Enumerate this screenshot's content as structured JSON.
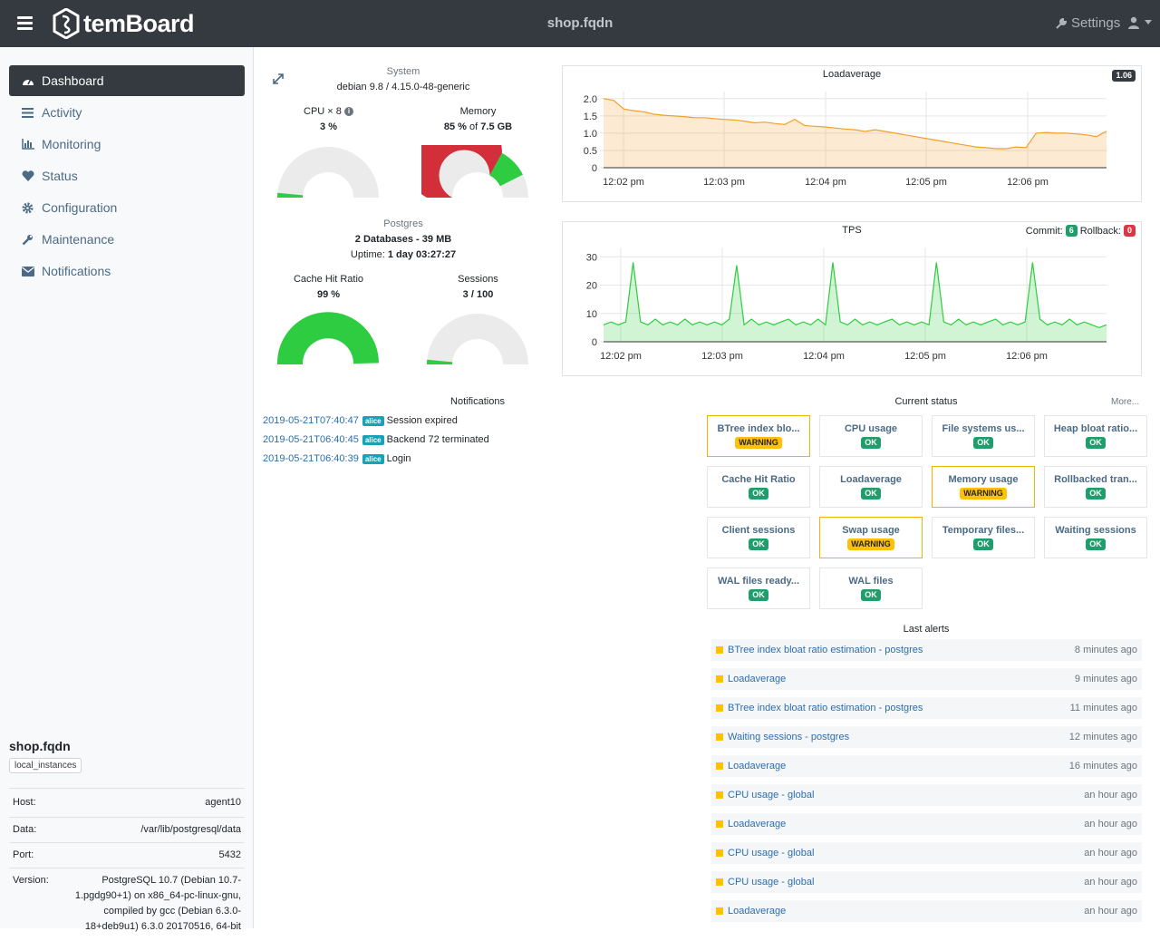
{
  "header": {
    "app_name": "temBoard",
    "host": "shop.fqdn",
    "settings_label": "Settings"
  },
  "sidebar": {
    "items": [
      {
        "label": "Dashboard",
        "icon": "dashboard-icon"
      },
      {
        "label": "Activity",
        "icon": "list-icon"
      },
      {
        "label": "Monitoring",
        "icon": "bar-chart-icon"
      },
      {
        "label": "Status",
        "icon": "heart-icon"
      },
      {
        "label": "Configuration",
        "icon": "gear-icon"
      },
      {
        "label": "Maintenance",
        "icon": "wrench-icon"
      },
      {
        "label": "Notifications",
        "icon": "envelope-icon"
      }
    ],
    "instance": {
      "name": "shop.fqdn",
      "group": "local_instances",
      "host_label": "Host:",
      "host": "agent10",
      "data_label": "Data:",
      "data": "/var/lib/postgresql/data",
      "port_label": "Port:",
      "port": "5432",
      "version_label": "Version:",
      "version_lines": [
        "PostgreSQL 10.7 (Debian 10.7-",
        "1.pgdg90+1) on x86_64-pc-linux-gnu,",
        "compiled by gcc (Debian 6.3.0-",
        "18+deb9u1) 6.3.0 20170516, 64-bit"
      ]
    }
  },
  "system": {
    "title": "System",
    "os": "debian 9.8 / 4.15.0-48-generic",
    "cpu_label": "CPU × 8",
    "cpu_value": "3 %",
    "cpu_fraction": 0.03,
    "memory_label": "Memory",
    "memory_pct": "85 %",
    "memory_of": "of",
    "memory_total": "7.5 GB",
    "memory_used_fraction": 0.66,
    "memory_cache_fraction": 0.19
  },
  "postgres": {
    "title": "Postgres",
    "databases": "2 Databases - 39 MB",
    "uptime_label": "Uptime:",
    "uptime": "1 day 03:27:27",
    "cache_label": "Cache Hit Ratio",
    "cache_value": "99 %",
    "cache_fraction": 0.99,
    "sessions_label": "Sessions",
    "sessions_value": "3 / 100",
    "sessions_fraction": 0.03
  },
  "charts": {
    "loadavg_badge": "1.06",
    "commit_label": "Commit:",
    "commit_value": "6",
    "rollback_label": "Rollback:",
    "rollback_value": "0"
  },
  "chart_data": [
    {
      "type": "area",
      "title": "Loadaverage",
      "x_ticks": [
        "12:02 pm",
        "12:03 pm",
        "12:04 pm",
        "12:05 pm",
        "12:06 pm"
      ],
      "y_ticks": [
        "0",
        "0.5",
        "1.0",
        "1.5",
        "2.0"
      ],
      "ylim": [
        0,
        2.1
      ],
      "color": "#f0a030",
      "values": [
        2.0,
        1.95,
        1.7,
        1.65,
        1.62,
        1.55,
        1.52,
        1.5,
        1.48,
        1.45,
        1.45,
        1.42,
        1.4,
        1.38,
        1.35,
        1.3,
        1.32,
        1.28,
        1.25,
        1.4,
        1.22,
        1.2,
        1.18,
        1.15,
        1.12,
        1.1,
        1.05,
        1.1,
        1.05,
        1.0,
        0.95,
        0.9,
        0.85,
        0.8,
        0.75,
        0.7,
        0.65,
        0.6,
        0.58,
        0.55,
        0.55,
        0.6,
        0.58,
        1.0,
        1.02,
        1.0,
        1.0,
        0.98,
        0.95,
        0.9,
        1.06
      ]
    },
    {
      "type": "area",
      "title": "TPS",
      "x_ticks": [
        "12:02 pm",
        "12:03 pm",
        "12:04 pm",
        "12:05 pm",
        "12:06 pm"
      ],
      "y_ticks": [
        "0",
        "10",
        "20",
        "30"
      ],
      "ylim": [
        0,
        32
      ],
      "color": "#2ecc40",
      "values": [
        6,
        7,
        6,
        7,
        28,
        7,
        6,
        8,
        6,
        7,
        6,
        8,
        6,
        7,
        6,
        7,
        6,
        8,
        27,
        6,
        8,
        6,
        7,
        6,
        7,
        8,
        6,
        7,
        6,
        8,
        6,
        28,
        7,
        6,
        8,
        6,
        7,
        6,
        7,
        8,
        6,
        7,
        6,
        7,
        6,
        28,
        7,
        6,
        8,
        6,
        7,
        6,
        7,
        8,
        6,
        7,
        6,
        7,
        28,
        8,
        6,
        7,
        6,
        8,
        6,
        7,
        6,
        5,
        6
      ]
    }
  ],
  "notifications": {
    "title": "Notifications",
    "items": [
      {
        "date": "2019-05-21T07:40:47",
        "user": "alice",
        "text": "Session expired"
      },
      {
        "date": "2019-05-21T06:40:45",
        "user": "alice",
        "text": "Backend 72 terminated"
      },
      {
        "date": "2019-05-21T06:40:39",
        "user": "alice",
        "text": "Login"
      }
    ]
  },
  "current_status": {
    "title": "Current status",
    "more": "More...",
    "items": [
      {
        "name": "BTree index blo...",
        "state": "WARNING"
      },
      {
        "name": "CPU usage",
        "state": "OK"
      },
      {
        "name": "File systems us...",
        "state": "OK"
      },
      {
        "name": "Heap bloat ratio...",
        "state": "OK"
      },
      {
        "name": "Cache Hit Ratio",
        "state": "OK"
      },
      {
        "name": "Loadaverage",
        "state": "OK"
      },
      {
        "name": "Memory usage",
        "state": "WARNING"
      },
      {
        "name": "Rollbacked tran...",
        "state": "OK"
      },
      {
        "name": "Client sessions",
        "state": "OK"
      },
      {
        "name": "Swap usage",
        "state": "WARNING"
      },
      {
        "name": "Temporary files...",
        "state": "OK"
      },
      {
        "name": "Waiting sessions",
        "state": "OK"
      },
      {
        "name": "WAL files ready...",
        "state": "OK"
      },
      {
        "name": "WAL files",
        "state": "OK"
      }
    ]
  },
  "last_alerts": {
    "title": "Last alerts",
    "items": [
      {
        "text": "BTree index bloat ratio estimation - postgres",
        "time": "8 minutes ago"
      },
      {
        "text": "Loadaverage",
        "time": "9 minutes ago"
      },
      {
        "text": "BTree index bloat ratio estimation - postgres",
        "time": "11 minutes ago"
      },
      {
        "text": "Waiting sessions - postgres",
        "time": "12 minutes ago"
      },
      {
        "text": "Loadaverage",
        "time": "16 minutes ago"
      },
      {
        "text": "CPU usage - global",
        "time": "an hour ago"
      },
      {
        "text": "Loadaverage",
        "time": "an hour ago"
      },
      {
        "text": "CPU usage - global",
        "time": "an hour ago"
      },
      {
        "text": "CPU usage - global",
        "time": "an hour ago"
      },
      {
        "text": "Loadaverage",
        "time": "an hour ago"
      }
    ]
  },
  "colors": {
    "navbar": "#343a40",
    "ok": "#1f9d6b",
    "warning": "#ffc107",
    "critical": "#dc3545",
    "gauge_green": "#2ecc40",
    "gauge_red": "#d32f3a"
  }
}
